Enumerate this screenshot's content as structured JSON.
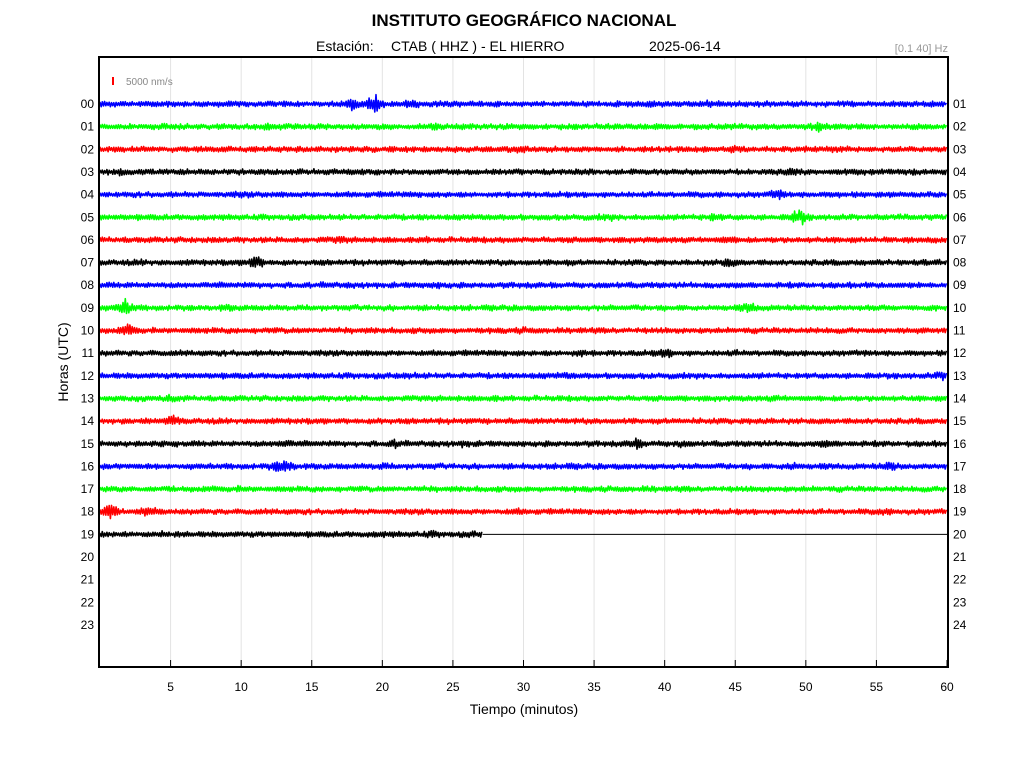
{
  "title": "INSTITUTO GEOGRÁFICO NACIONAL",
  "station_label": "Estación:",
  "station": "CTAB ( HHZ ) - EL HIERRO",
  "date": "2025-06-14",
  "filter": "[0.1 40] Hz",
  "scale_label": "5000 nm/s",
  "colors": {
    "blue": "#0000ff",
    "green": "#00ff00",
    "red": "#ff0000",
    "black": "#000000",
    "scale": "#ff0000"
  },
  "chart_data": {
    "type": "line",
    "xlabel": "Tiempo (minutos)",
    "ylabel": "Horas (UTC)",
    "xlim": [
      0,
      60
    ],
    "x_ticks": [
      "5",
      "10",
      "15",
      "20",
      "25",
      "30",
      "35",
      "40",
      "45",
      "50",
      "55",
      "60"
    ],
    "x_tick_values": [
      5,
      10,
      15,
      20,
      25,
      30,
      35,
      40,
      45,
      50,
      55,
      60
    ],
    "left_labels": [
      "00",
      "01",
      "02",
      "03",
      "04",
      "05",
      "06",
      "07",
      "08",
      "09",
      "10",
      "11",
      "12",
      "13",
      "14",
      "15",
      "16",
      "17",
      "18",
      "19",
      "20",
      "21",
      "22",
      "23"
    ],
    "right_labels": [
      "01",
      "02",
      "03",
      "04",
      "05",
      "06",
      "07",
      "08",
      "09",
      "10",
      "11",
      "12",
      "13",
      "14",
      "15",
      "16",
      "17",
      "18",
      "19",
      "20",
      "21",
      "22",
      "23",
      "24"
    ],
    "grid": true,
    "traces": [
      {
        "hour": "00",
        "color": "blue",
        "end_minute": 60,
        "events": [
          {
            "t": 18,
            "amp": 2.3
          },
          {
            "t": 19.5,
            "amp": 3.6
          },
          {
            "t": 22,
            "amp": 1.6
          },
          {
            "t": 39,
            "amp": 1.4
          },
          {
            "t": 43,
            "amp": 1.5
          },
          {
            "t": 47,
            "amp": 1.2
          }
        ]
      },
      {
        "hour": "01",
        "color": "green",
        "end_minute": 60,
        "events": [
          {
            "t": 4,
            "amp": 1.3
          },
          {
            "t": 12,
            "amp": 1.7
          },
          {
            "t": 24,
            "amp": 1.4
          },
          {
            "t": 51,
            "amp": 1.8
          }
        ]
      },
      {
        "hour": "02",
        "color": "red",
        "end_minute": 60,
        "events": [
          {
            "t": 9,
            "amp": 1.3
          },
          {
            "t": 30,
            "amp": 1.6
          },
          {
            "t": 45,
            "amp": 1.3
          },
          {
            "t": 52,
            "amp": 1.4
          }
        ]
      },
      {
        "hour": "03",
        "color": "black",
        "end_minute": 60,
        "events": [
          {
            "t": 1.5,
            "amp": 1.5
          },
          {
            "t": 16,
            "amp": 1.2
          },
          {
            "t": 49,
            "amp": 1.6
          }
        ]
      },
      {
        "hour": "04",
        "color": "blue",
        "end_minute": 60,
        "events": [
          {
            "t": 10,
            "amp": 1.2
          },
          {
            "t": 48,
            "amp": 1.8
          },
          {
            "t": 52,
            "amp": 1.2
          }
        ]
      },
      {
        "hour": "05",
        "color": "green",
        "end_minute": 60,
        "events": [
          {
            "t": 36,
            "amp": 1.3
          },
          {
            "t": 43.5,
            "amp": 1.6
          },
          {
            "t": 49.5,
            "amp": 3.0
          }
        ]
      },
      {
        "hour": "06",
        "color": "red",
        "end_minute": 60,
        "events": [
          {
            "t": 17,
            "amp": 1.4
          },
          {
            "t": 23,
            "amp": 1.2
          },
          {
            "t": 44.5,
            "amp": 1.5
          }
        ]
      },
      {
        "hour": "07",
        "color": "black",
        "end_minute": 60,
        "events": [
          {
            "t": 3,
            "amp": 1.2
          },
          {
            "t": 11,
            "amp": 2.6
          },
          {
            "t": 33,
            "amp": 1.2
          },
          {
            "t": 44.5,
            "amp": 1.8
          },
          {
            "t": 55,
            "amp": 1.2
          }
        ]
      },
      {
        "hour": "08",
        "color": "blue",
        "end_minute": 60,
        "events": [
          {
            "t": 16,
            "amp": 1.2
          },
          {
            "t": 24,
            "amp": 1.3
          }
        ]
      },
      {
        "hour": "09",
        "color": "green",
        "end_minute": 60,
        "events": [
          {
            "t": 1.8,
            "amp": 3.0
          },
          {
            "t": 9,
            "amp": 1.3
          },
          {
            "t": 46,
            "amp": 1.9
          }
        ]
      },
      {
        "hour": "10",
        "color": "red",
        "end_minute": 60,
        "events": [
          {
            "t": 2,
            "amp": 2.1
          },
          {
            "t": 30,
            "amp": 1.2
          }
        ]
      },
      {
        "hour": "11",
        "color": "black",
        "end_minute": 60,
        "events": [
          {
            "t": 34,
            "amp": 1.5
          },
          {
            "t": 40,
            "amp": 1.9
          },
          {
            "t": 45,
            "amp": 1.2
          }
        ]
      },
      {
        "hour": "12",
        "color": "blue",
        "end_minute": 60,
        "events": [
          {
            "t": 22,
            "amp": 1.3
          },
          {
            "t": 33,
            "amp": 1.3
          },
          {
            "t": 59.8,
            "amp": 1.8
          }
        ]
      },
      {
        "hour": "13",
        "color": "green",
        "end_minute": 60,
        "events": [
          {
            "t": 5,
            "amp": 1.4
          },
          {
            "t": 28,
            "amp": 1.2
          },
          {
            "t": 48,
            "amp": 1.3
          }
        ]
      },
      {
        "hour": "14",
        "color": "red",
        "end_minute": 60,
        "events": [
          {
            "t": 5.2,
            "amp": 1.9
          },
          {
            "t": 20,
            "amp": 1.2
          },
          {
            "t": 47,
            "amp": 1.2
          }
        ]
      },
      {
        "hour": "15",
        "color": "black",
        "end_minute": 60,
        "events": [
          {
            "t": 13,
            "amp": 1.5
          },
          {
            "t": 21,
            "amp": 1.7
          },
          {
            "t": 26,
            "amp": 1.4
          },
          {
            "t": 38,
            "amp": 2.0
          },
          {
            "t": 41,
            "amp": 1.4
          },
          {
            "t": 51.5,
            "amp": 1.5
          }
        ]
      },
      {
        "hour": "16",
        "color": "blue",
        "end_minute": 60,
        "events": [
          {
            "t": 12.5,
            "amp": 1.6
          },
          {
            "t": 13.2,
            "amp": 2.2
          },
          {
            "t": 20,
            "amp": 1.4
          },
          {
            "t": 33,
            "amp": 1.2
          },
          {
            "t": 49,
            "amp": 1.7
          },
          {
            "t": 56,
            "amp": 1.8
          }
        ]
      },
      {
        "hour": "17",
        "color": "green",
        "end_minute": 60,
        "events": [
          {
            "t": 10,
            "amp": 1.2
          },
          {
            "t": 39,
            "amp": 1.2
          }
        ]
      },
      {
        "hour": "18",
        "color": "red",
        "end_minute": 60,
        "events": [
          {
            "t": 0.7,
            "amp": 3.5
          },
          {
            "t": 3.4,
            "amp": 2.0
          },
          {
            "t": 29.5,
            "amp": 1.3
          },
          {
            "t": 55.5,
            "amp": 1.4
          }
        ]
      },
      {
        "hour": "19",
        "color": "black",
        "end_minute": 27.1,
        "events": [
          {
            "t": 4.5,
            "amp": 1.3
          },
          {
            "t": 20,
            "amp": 1.2
          },
          {
            "t": 23.5,
            "amp": 1.3
          },
          {
            "t": 26.5,
            "amp": 1.2
          }
        ]
      }
    ]
  }
}
